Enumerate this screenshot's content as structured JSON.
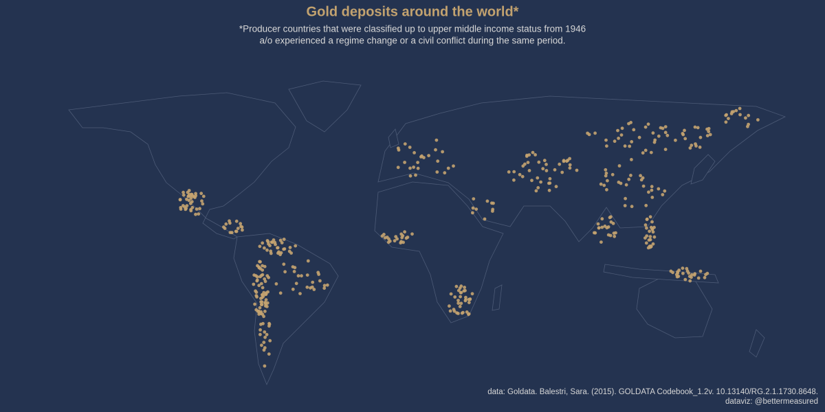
{
  "header": {
    "title": "Gold deposits around the world*",
    "subtitle": [
      "*Producer countries that were classified up to upper middle income status from 1946",
      "a/o experienced a regime change or a civil conflict during the same period."
    ]
  },
  "footer": {
    "source": "data: Goldata. Balestri, Sara. (2015). GOLDATA Codebook_1.2v. 10.13140/RG.2.1.1730.8648.",
    "credit": "dataviz: @bettermeasured"
  }
}
